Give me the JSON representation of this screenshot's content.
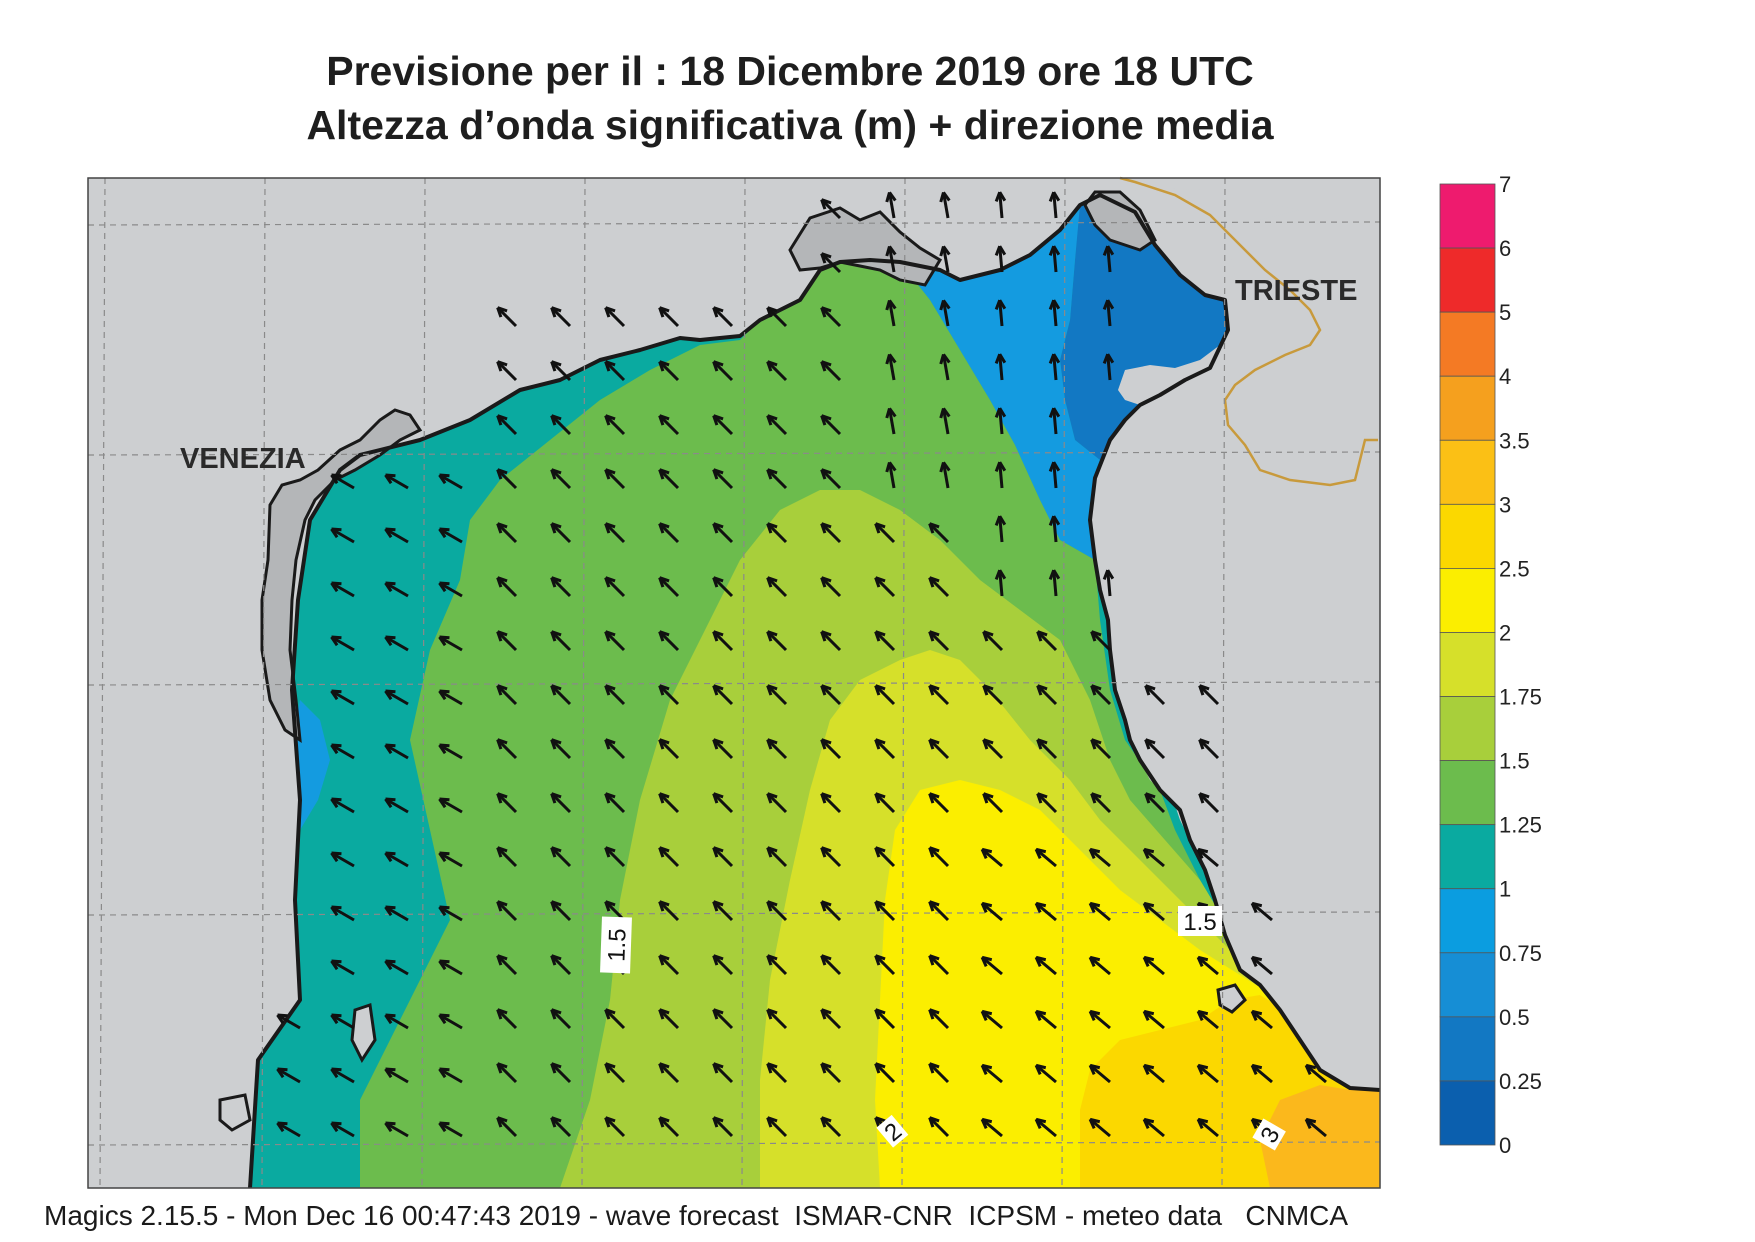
{
  "title": {
    "line1": "Previsione per il  :  18 Dicembre  2019    ore 18 UTC",
    "line2": "Altezza d’onda significativa (m) + direzione media"
  },
  "cities": {
    "venezia": "VENEZIA",
    "trieste": "TRIESTE"
  },
  "contour_labels": {
    "left": "1.5",
    "right": "1.5",
    "bottom_center": "2",
    "bottom_right": "3"
  },
  "colorbar": {
    "levels": [
      "7",
      "6",
      "5",
      "4",
      "3.5",
      "3",
      "2.5",
      "2",
      "1.75",
      "1.5",
      "1.25",
      "1",
      "0.75",
      "0.5",
      "0.25",
      "0"
    ],
    "colors": [
      "#ee1b6e",
      "#ee2a2a",
      "#f47a24",
      "#f5a01e",
      "#fbc015",
      "#fbd800",
      "#fbee00",
      "#d6e02a",
      "#a8cf3b",
      "#6cbc4d",
      "#0aaaa0",
      "#0b9de0",
      "#168ed5",
      "#1278c3",
      "#0b5fae"
    ]
  },
  "footer": "Magics 2.15.5 - Mon Dec 16 00:47:43 2019 - wave forecast  ISMAR-CNR  ICPSM - meteo data   CNMCA",
  "colors": {
    "land": "#cdcfd1",
    "coast": "#1a1a1a",
    "border": "#c89a3c",
    "grid": "#8a8a8a"
  },
  "icons": [
    "wave-direction-arrow-icon"
  ]
}
